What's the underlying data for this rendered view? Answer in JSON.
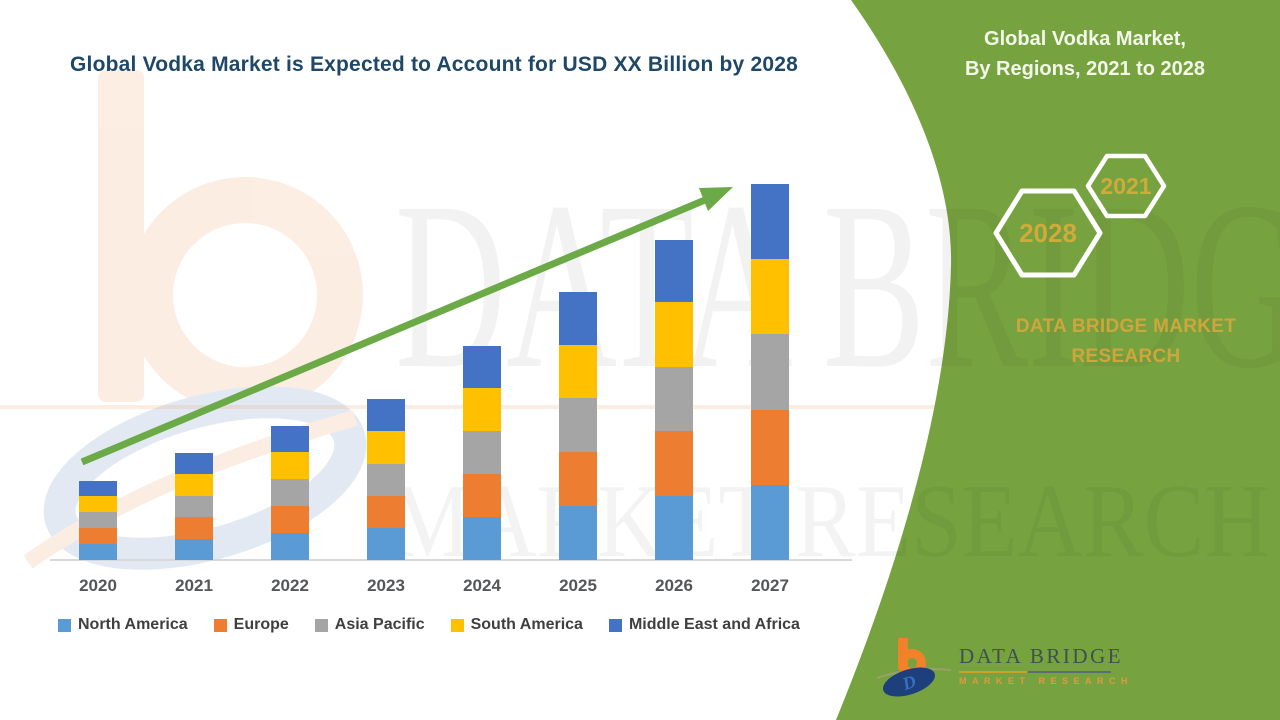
{
  "title": "Global Vodka Market is Expected to Account for USD XX Billion by 2028",
  "side_panel": {
    "heading_line1": "Global Vodka Market,",
    "heading_line2": "By Regions, 2021 to 2028",
    "hexagons": [
      {
        "label": "2028"
      },
      {
        "label": "2021"
      }
    ],
    "brand": "DATA BRIDGE MARKET RESEARCH"
  },
  "logo": {
    "name": "DATA BRIDGE",
    "tagline": "MARKET RESEARCH"
  },
  "watermarks": {
    "big_text": "DATA BRIDGE",
    "tagline": "MARKET RESEARCH"
  },
  "chart_data": {
    "type": "bar",
    "stacked": true,
    "title": "Global Vodka Market is Expected to Account for USD XX Billion by 2028",
    "categories": [
      "2020",
      "2021",
      "2022",
      "2023",
      "2024",
      "2025",
      "2026",
      "2027"
    ],
    "series": [
      {
        "name": "North America",
        "color": "#5B9BD5",
        "values": [
          16,
          21,
          27,
          32,
          43,
          54,
          64,
          75
        ]
      },
      {
        "name": "Europe",
        "color": "#ED7D31",
        "values": [
          16,
          22,
          27,
          32,
          43,
          54,
          65,
          75
        ]
      },
      {
        "name": "Asia Pacific",
        "color": "#A5A5A5",
        "values": [
          16,
          21,
          27,
          32,
          43,
          54,
          64,
          76
        ]
      },
      {
        "name": "South America",
        "color": "#FFC000",
        "values": [
          16,
          22,
          27,
          33,
          43,
          53,
          65,
          75
        ]
      },
      {
        "name": "Middle East and Africa",
        "color": "#4472C4",
        "values": [
          15,
          21,
          26,
          32,
          42,
          53,
          62,
          75
        ]
      }
    ],
    "xlabel": "",
    "ylabel": "",
    "value_axis_visible": false,
    "units": "relative height units (no value axis shown; values estimated from bar heights)",
    "legend_position": "bottom",
    "gridlines": false,
    "annotations": {
      "trend_arrow": "green upward arrow from first bar toward last bar",
      "arrow_color": "#6BAA47"
    }
  },
  "colors": {
    "panel_green": "#76A33F",
    "gold": "#D2A93B",
    "title_blue": "#1F4868"
  }
}
